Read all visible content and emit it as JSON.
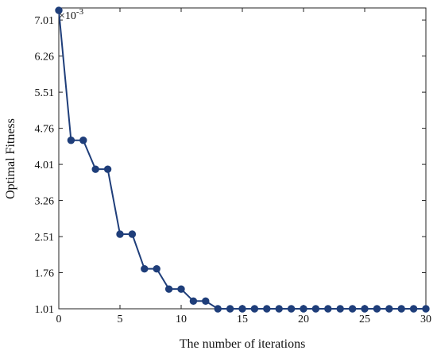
{
  "chart_data": {
    "type": "line",
    "xlabel": "The number of iterations",
    "ylabel": "Optimal Fitness",
    "y_exponent_label": "×10",
    "y_exponent_power": "-3",
    "xlim": [
      0,
      30
    ],
    "ylim": [
      1.01,
      7.26
    ],
    "xticks": [
      0,
      5,
      10,
      15,
      20,
      25,
      30
    ],
    "xtick_labels": [
      "0",
      "5",
      "10",
      "15",
      "20",
      "25",
      "30"
    ],
    "yticks": [
      1.01,
      1.76,
      2.51,
      3.26,
      4.01,
      4.76,
      5.51,
      6.26,
      7.01
    ],
    "ytick_labels": [
      "1.01",
      "1.76",
      "2.51",
      "3.26",
      "4.01",
      "4.76",
      "5.51",
      "6.26",
      "7.01"
    ],
    "grid": false,
    "series": [
      {
        "color": "#1f3e7a",
        "marker": "circle",
        "x": [
          0,
          1,
          2,
          3,
          4,
          5,
          6,
          7,
          8,
          9,
          10,
          11,
          12,
          13,
          14,
          15,
          16,
          17,
          18,
          19,
          20,
          21,
          22,
          23,
          24,
          25,
          26,
          27,
          28,
          29,
          30
        ],
        "y": [
          7.21,
          4.51,
          4.51,
          3.91,
          3.91,
          2.56,
          2.56,
          1.84,
          1.84,
          1.42,
          1.42,
          1.17,
          1.17,
          1.01,
          1.01,
          1.01,
          1.01,
          1.01,
          1.01,
          1.01,
          1.01,
          1.01,
          1.01,
          1.01,
          1.01,
          1.01,
          1.01,
          1.01,
          1.01,
          1.01,
          1.01
        ]
      }
    ]
  }
}
